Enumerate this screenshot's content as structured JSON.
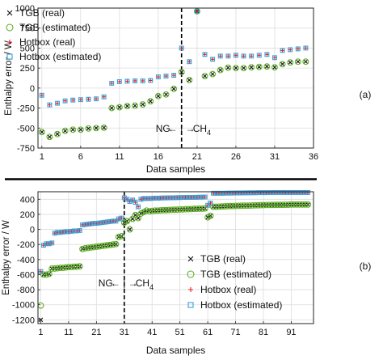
{
  "chart_data": [
    {
      "type": "scatter",
      "panel_label": "(a)",
      "xlabel": "Data samples",
      "ylabel": "Enthalpy error / W",
      "xlim": [
        0.5,
        36
      ],
      "ylim": [
        -750,
        1000
      ],
      "xticks": [
        1,
        6,
        11,
        16,
        21,
        26,
        31,
        36
      ],
      "yticks": [
        -750,
        -500,
        -250,
        0,
        250,
        500,
        750,
        1000
      ],
      "grid": true,
      "legend_position": "top-left",
      "divider": {
        "x": 19,
        "left_label": "NG",
        "arrow": "← | →",
        "right_label": "CH",
        "right_subscript": "4"
      },
      "x": [
        1,
        2,
        3,
        4,
        5,
        6,
        7,
        8,
        9,
        10,
        11,
        12,
        13,
        14,
        15,
        16,
        17,
        18,
        19,
        20,
        21,
        22,
        23,
        24,
        25,
        26,
        27,
        28,
        29,
        30,
        31,
        32,
        33,
        34,
        35
      ],
      "series": [
        {
          "name": "TGB (real)",
          "marker": "x",
          "color": "#111111",
          "values": [
            -550,
            -610,
            -575,
            -535,
            -520,
            -520,
            -505,
            -500,
            -495,
            -250,
            -240,
            -225,
            -220,
            -205,
            -165,
            -100,
            -80,
            -10,
            200,
            100,
            960,
            150,
            175,
            225,
            255,
            250,
            250,
            260,
            265,
            270,
            260,
            300,
            320,
            330,
            330
          ]
        },
        {
          "name": "TGB (estimated)",
          "marker": "circle",
          "color": "#5fb025",
          "values": [
            -550,
            -610,
            -575,
            -535,
            -520,
            -520,
            -505,
            -500,
            -495,
            -250,
            -240,
            -225,
            -220,
            -205,
            -165,
            -100,
            -80,
            -10,
            200,
            100,
            960,
            150,
            175,
            225,
            255,
            250,
            250,
            260,
            265,
            270,
            260,
            300,
            320,
            330,
            330
          ]
        },
        {
          "name": "Hotbox (real)",
          "marker": "plus",
          "color": "#e8202a",
          "values": [
            -90,
            -210,
            -190,
            -160,
            -150,
            -145,
            -140,
            -135,
            -110,
            60,
            80,
            85,
            90,
            90,
            95,
            140,
            150,
            160,
            500,
            330,
            960,
            420,
            360,
            400,
            400,
            410,
            400,
            400,
            410,
            420,
            380,
            470,
            480,
            490,
            500
          ]
        },
        {
          "name": "Hotbox (estimated)",
          "marker": "square",
          "color": "#3aa0d8",
          "values": [
            -90,
            -210,
            -190,
            -160,
            -150,
            -145,
            -140,
            -135,
            -110,
            60,
            80,
            85,
            90,
            90,
            95,
            140,
            150,
            160,
            500,
            330,
            960,
            420,
            360,
            400,
            400,
            410,
            400,
            400,
            410,
            420,
            380,
            470,
            480,
            490,
            500
          ]
        }
      ]
    },
    {
      "type": "scatter",
      "panel_label": "(b)",
      "xlabel": "Data samples",
      "ylabel": "Enthalpy error / W",
      "xlim": [
        0,
        99
      ],
      "ylim": [
        -1250,
        500
      ],
      "xticks": [
        1,
        11,
        21,
        31,
        41,
        51,
        61,
        71,
        81,
        91
      ],
      "yticks": [
        -1200,
        -1000,
        -800,
        -600,
        -400,
        -200,
        0,
        200,
        400
      ],
      "grid": true,
      "legend_position": "bottom-right",
      "divider": {
        "x": 31,
        "left_label": "NG",
        "arrow": "← | →",
        "right_label": "CH",
        "right_subscript": "4"
      },
      "x": [
        1,
        2,
        3,
        4,
        5,
        6,
        7,
        8,
        9,
        10,
        11,
        12,
        13,
        14,
        15,
        16,
        17,
        18,
        19,
        20,
        21,
        22,
        23,
        24,
        25,
        26,
        27,
        28,
        29,
        30,
        31,
        32,
        33,
        34,
        35,
        36,
        37,
        38,
        39,
        40,
        41,
        42,
        43,
        44,
        45,
        46,
        47,
        48,
        49,
        50,
        51,
        52,
        53,
        54,
        55,
        56,
        57,
        58,
        59,
        60,
        61,
        62,
        63,
        64,
        65,
        66,
        67,
        68,
        69,
        70,
        71,
        72,
        73,
        74,
        75,
        76,
        77,
        78,
        79,
        80,
        81,
        82,
        83,
        84,
        85,
        86,
        87,
        88,
        89,
        90,
        91,
        92,
        93,
        94,
        95,
        96,
        97
      ],
      "series": [
        {
          "name": "TGB (real)",
          "marker": "x",
          "color": "#111111",
          "values": [
            -1200,
            -600,
            -600,
            -590,
            -520,
            -520,
            -515,
            -510,
            -510,
            -505,
            -500,
            -500,
            -495,
            -495,
            -490,
            -260,
            -250,
            -245,
            -240,
            -235,
            -230,
            -225,
            -220,
            -215,
            -210,
            -205,
            -200,
            -195,
            -100,
            -90,
            90,
            110,
            0,
            140,
            190,
            150,
            210,
            230,
            250,
            240,
            245,
            250,
            250,
            252,
            255,
            255,
            258,
            260,
            262,
            262,
            265,
            265,
            268,
            270,
            270,
            272,
            274,
            275,
            275,
            278,
            160,
            180,
            300,
            300,
            302,
            304,
            306,
            308,
            310,
            310,
            312,
            312,
            314,
            315,
            315,
            316,
            318,
            320,
            320,
            322,
            322,
            324,
            324,
            325,
            325,
            326,
            326,
            326,
            328,
            328,
            330,
            330,
            330,
            330,
            330,
            330,
            330
          ]
        },
        {
          "name": "TGB (estimated)",
          "marker": "circle",
          "color": "#5fb025",
          "values": [
            -1010,
            -600,
            -600,
            -590,
            -520,
            -520,
            -515,
            -510,
            -510,
            -505,
            -500,
            -500,
            -495,
            -495,
            -490,
            -260,
            -250,
            -245,
            -240,
            -235,
            -230,
            -225,
            -220,
            -215,
            -210,
            -205,
            -200,
            -195,
            -100,
            -90,
            90,
            110,
            0,
            140,
            190,
            150,
            210,
            230,
            250,
            240,
            245,
            250,
            250,
            252,
            255,
            255,
            258,
            260,
            262,
            262,
            265,
            265,
            268,
            270,
            270,
            272,
            274,
            275,
            275,
            278,
            160,
            180,
            300,
            300,
            302,
            304,
            306,
            308,
            310,
            310,
            312,
            312,
            314,
            315,
            315,
            316,
            318,
            320,
            320,
            322,
            322,
            324,
            324,
            325,
            325,
            326,
            326,
            326,
            328,
            328,
            330,
            330,
            330,
            330,
            330,
            330,
            330
          ]
        },
        {
          "name": "Hotbox (real)",
          "marker": "plus",
          "color": "#e8202a",
          "values": [
            -560,
            -210,
            -190,
            -190,
            -180,
            -50,
            -40,
            -40,
            -35,
            -30,
            -30,
            -25,
            -20,
            -20,
            -15,
            60,
            65,
            70,
            75,
            80,
            80,
            85,
            90,
            95,
            100,
            105,
            110,
            110,
            140,
            150,
            420,
            400,
            370,
            390,
            360,
            300,
            400,
            410,
            410,
            410,
            412,
            415,
            415,
            416,
            418,
            418,
            420,
            420,
            420,
            422,
            422,
            424,
            424,
            425,
            425,
            426,
            426,
            428,
            428,
            430,
            320,
            350,
            480,
            480,
            480,
            480,
            480,
            482,
            482,
            482,
            484,
            484,
            484,
            485,
            485,
            486,
            486,
            486,
            488,
            488,
            488,
            488,
            489,
            489,
            490,
            490,
            490,
            490,
            490,
            490,
            490,
            490,
            490,
            490,
            490,
            490,
            490
          ]
        },
        {
          "name": "Hotbox (estimated)",
          "marker": "square",
          "color": "#3aa0d8",
          "values": [
            -560,
            -210,
            -190,
            -190,
            -180,
            -50,
            -40,
            -40,
            -35,
            -30,
            -30,
            -25,
            -20,
            -20,
            -15,
            60,
            65,
            70,
            75,
            80,
            80,
            85,
            90,
            95,
            100,
            105,
            110,
            110,
            140,
            150,
            420,
            400,
            370,
            390,
            360,
            300,
            400,
            410,
            410,
            410,
            412,
            415,
            415,
            416,
            418,
            418,
            420,
            420,
            420,
            422,
            422,
            424,
            424,
            425,
            425,
            426,
            426,
            428,
            428,
            430,
            320,
            350,
            480,
            480,
            480,
            480,
            480,
            482,
            482,
            482,
            484,
            484,
            484,
            485,
            485,
            486,
            486,
            486,
            488,
            488,
            488,
            488,
            489,
            489,
            490,
            490,
            490,
            490,
            490,
            490,
            490,
            490,
            490,
            490,
            490,
            490,
            490
          ]
        }
      ]
    }
  ]
}
